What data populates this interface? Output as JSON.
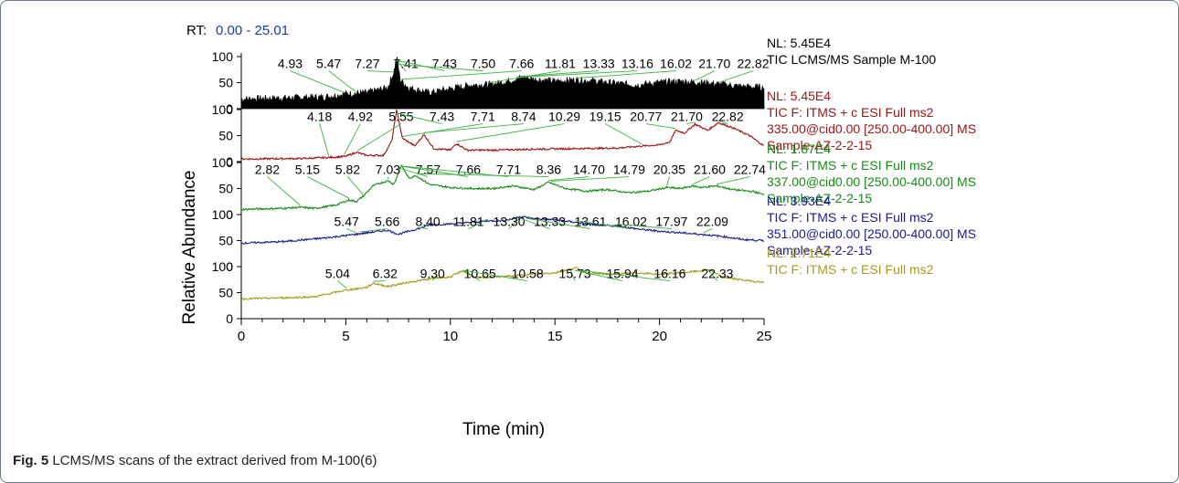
{
  "chart_data": {
    "type": "line",
    "rt_prefix": "RT:",
    "rt_range": "0.00 - 25.01",
    "xlabel": "Time (min)",
    "ylabel": "Relative Abundance",
    "xlim": [
      0,
      25
    ],
    "x_ticks": [
      "0",
      "5",
      "10",
      "15",
      "20",
      "25"
    ],
    "ylim": [
      0,
      100
    ],
    "y_ticks": [
      "0",
      "50",
      "100"
    ],
    "panels": [
      {
        "color": "#000000",
        "style": "filled",
        "info": [
          "NL: 5.45E4",
          "TIC  LCMS/MS Sample M-100"
        ],
        "peaks": [
          {
            "x": 4.93,
            "label": "4.93"
          },
          {
            "x": 5.47,
            "label": "5.47"
          },
          {
            "x": 7.27,
            "label": "7.27"
          },
          {
            "x": 7.41,
            "label": "7.41"
          },
          {
            "x": 7.43,
            "label": "7.43"
          },
          {
            "x": 7.5,
            "label": "7.50"
          },
          {
            "x": 7.66,
            "label": "7.66"
          },
          {
            "x": 11.81,
            "label": "11.81"
          },
          {
            "x": 13.33,
            "label": "13.33"
          },
          {
            "x": 13.16,
            "label": "13.16"
          },
          {
            "x": 16.02,
            "label": "16.02"
          },
          {
            "x": 21.7,
            "label": "21.70"
          },
          {
            "x": 22.82,
            "label": "22.82"
          }
        ],
        "profile": [
          [
            0,
            18
          ],
          [
            2,
            20
          ],
          [
            4,
            22
          ],
          [
            5,
            28
          ],
          [
            6,
            30
          ],
          [
            7,
            40
          ],
          [
            7.3,
            70
          ],
          [
            7.43,
            100
          ],
          [
            7.6,
            55
          ],
          [
            8,
            40
          ],
          [
            9,
            30
          ],
          [
            10,
            38
          ],
          [
            11,
            45
          ],
          [
            12,
            46
          ],
          [
            13,
            55
          ],
          [
            13.5,
            60
          ],
          [
            14,
            56
          ],
          [
            15,
            52
          ],
          [
            16,
            55
          ],
          [
            17,
            52
          ],
          [
            18,
            48
          ],
          [
            19,
            45
          ],
          [
            20,
            50
          ],
          [
            21,
            52
          ],
          [
            22,
            50
          ],
          [
            23,
            46
          ],
          [
            24,
            42
          ],
          [
            25,
            40
          ]
        ]
      },
      {
        "color": "#9b1414",
        "style": "line",
        "info": [
          "NL: 5.45E4",
          "TIC F: ITMS + c ESI Full ms2",
          "335.00@cid0.00 [250.00-400.00] MS",
          "Sample-AZ-2-2-15"
        ],
        "peaks": [
          {
            "x": 4.18,
            "label": "4.18"
          },
          {
            "x": 4.92,
            "label": "4.92"
          },
          {
            "x": 5.55,
            "label": "5.55"
          },
          {
            "x": 7.43,
            "label": "7.43"
          },
          {
            "x": 7.71,
            "label": "7.71"
          },
          {
            "x": 8.74,
            "label": "8.74"
          },
          {
            "x": 10.29,
            "label": "10.29"
          },
          {
            "x": 19.15,
            "label": "19.15"
          },
          {
            "x": 20.77,
            "label": "20.77"
          },
          {
            "x": 21.7,
            "label": "21.70"
          },
          {
            "x": 22.82,
            "label": "22.82"
          }
        ],
        "profile": [
          [
            0,
            5
          ],
          [
            3,
            6
          ],
          [
            4.2,
            8
          ],
          [
            5,
            10
          ],
          [
            5.5,
            18
          ],
          [
            6,
            12
          ],
          [
            6.8,
            12
          ],
          [
            7.2,
            40
          ],
          [
            7.43,
            100
          ],
          [
            7.7,
            45
          ],
          [
            8.3,
            30
          ],
          [
            8.74,
            52
          ],
          [
            9.2,
            25
          ],
          [
            10,
            22
          ],
          [
            10.29,
            35
          ],
          [
            10.8,
            22
          ],
          [
            12,
            22
          ],
          [
            14,
            24
          ],
          [
            16,
            25
          ],
          [
            18,
            26
          ],
          [
            19.15,
            30
          ],
          [
            20,
            32
          ],
          [
            20.5,
            38
          ],
          [
            20.77,
            60
          ],
          [
            21.2,
            55
          ],
          [
            21.7,
            72
          ],
          [
            22.3,
            60
          ],
          [
            22.82,
            75
          ],
          [
            23.5,
            65
          ],
          [
            24.3,
            50
          ],
          [
            25,
            30
          ]
        ]
      },
      {
        "color": "#168a16",
        "style": "line",
        "info": [
          "NL: 1.87E4",
          "TIC F: ITMS + c ESI Full ms2",
          "337.00@cid0.00 [250.00-400.00] MS",
          "Sample-AZ-2-2-15"
        ],
        "peaks": [
          {
            "x": 2.82,
            "label": "2.82"
          },
          {
            "x": 5.15,
            "label": "5.15"
          },
          {
            "x": 5.82,
            "label": "5.82"
          },
          {
            "x": 7.03,
            "label": "7.03"
          },
          {
            "x": 7.57,
            "label": "7.57"
          },
          {
            "x": 7.66,
            "label": "7.66"
          },
          {
            "x": 7.71,
            "label": "7.71"
          },
          {
            "x": 8.36,
            "label": "8.36"
          },
          {
            "x": 14.7,
            "label": "14.70"
          },
          {
            "x": 14.79,
            "label": "14.79"
          },
          {
            "x": 20.35,
            "label": "20.35"
          },
          {
            "x": 21.6,
            "label": "21.60"
          },
          {
            "x": 22.74,
            "label": "22.74"
          }
        ],
        "profile": [
          [
            0,
            10
          ],
          [
            2,
            12
          ],
          [
            2.82,
            14
          ],
          [
            3.5,
            12
          ],
          [
            4.5,
            18
          ],
          [
            5.15,
            28
          ],
          [
            5.5,
            25
          ],
          [
            5.82,
            35
          ],
          [
            6.3,
            55
          ],
          [
            6.6,
            60
          ],
          [
            7.03,
            65
          ],
          [
            7.3,
            58
          ],
          [
            7.66,
            95
          ],
          [
            8,
            70
          ],
          [
            8.36,
            75
          ],
          [
            9,
            58
          ],
          [
            10,
            52
          ],
          [
            11,
            50
          ],
          [
            12,
            50
          ],
          [
            13,
            55
          ],
          [
            14,
            48
          ],
          [
            14.7,
            62
          ],
          [
            15.5,
            50
          ],
          [
            16.5,
            45
          ],
          [
            17.5,
            48
          ],
          [
            18.5,
            42
          ],
          [
            19.5,
            45
          ],
          [
            20.35,
            52
          ],
          [
            21,
            50
          ],
          [
            21.6,
            55
          ],
          [
            22,
            52
          ],
          [
            22.74,
            55
          ],
          [
            23.5,
            48
          ],
          [
            24.5,
            44
          ],
          [
            25,
            38
          ]
        ]
      },
      {
        "color": "#1b1b8f",
        "style": "line",
        "info": [
          "NL: 3.93E4",
          "TIC F: ITMS + c ESI Full ms2",
          "351.00@cid0.00 [250.00-400.00] MS",
          "Sample-AZ-2-2-15"
        ],
        "peaks": [
          {
            "x": 5.47,
            "label": "5.47"
          },
          {
            "x": 5.66,
            "label": "5.66"
          },
          {
            "x": 8.4,
            "label": "8.40"
          },
          {
            "x": 11.81,
            "label": "11.81"
          },
          {
            "x": 13.3,
            "label": "13.30"
          },
          {
            "x": 13.33,
            "label": "13.33"
          },
          {
            "x": 13.61,
            "label": "13.61"
          },
          {
            "x": 16.02,
            "label": "16.02"
          },
          {
            "x": 17.97,
            "label": "17.97"
          },
          {
            "x": 22.09,
            "label": "22.09"
          }
        ],
        "profile": [
          [
            0,
            45
          ],
          [
            2,
            48
          ],
          [
            4,
            55
          ],
          [
            5.47,
            62
          ],
          [
            6,
            65
          ],
          [
            7,
            70
          ],
          [
            7.5,
            62
          ],
          [
            8,
            68
          ],
          [
            8.4,
            72
          ],
          [
            9,
            80
          ],
          [
            10,
            82
          ],
          [
            11,
            85
          ],
          [
            11.81,
            88
          ],
          [
            12.5,
            88
          ],
          [
            13,
            92
          ],
          [
            13.3,
            96
          ],
          [
            13.61,
            95
          ],
          [
            14,
            92
          ],
          [
            15,
            90
          ],
          [
            16,
            85
          ],
          [
            17,
            80
          ],
          [
            18,
            78
          ],
          [
            19,
            72
          ],
          [
            20,
            68
          ],
          [
            21,
            65
          ],
          [
            22,
            62
          ],
          [
            23,
            58
          ],
          [
            24,
            52
          ],
          [
            25,
            50
          ]
        ]
      },
      {
        "color": "#a39c1c",
        "style": "line",
        "info": [
          "NL: 2.71E4",
          "TIC F: ITMS + c ESI Full ms2"
        ],
        "peaks": [
          {
            "x": 5.04,
            "label": "5.04"
          },
          {
            "x": 6.32,
            "label": "6.32"
          },
          {
            "x": 9.3,
            "label": "9.30"
          },
          {
            "x": 10.65,
            "label": "10.65"
          },
          {
            "x": 10.58,
            "label": "10.58"
          },
          {
            "x": 15.73,
            "label": "15.73"
          },
          {
            "x": 15.94,
            "label": "15.94"
          },
          {
            "x": 16.16,
            "label": "16.16"
          },
          {
            "x": 22.33,
            "label": "22.33"
          }
        ],
        "profile": [
          [
            0,
            38
          ],
          [
            2,
            40
          ],
          [
            3.5,
            42
          ],
          [
            5.04,
            55
          ],
          [
            6,
            60
          ],
          [
            6.32,
            68
          ],
          [
            7,
            62
          ],
          [
            8,
            70
          ],
          [
            9.3,
            78
          ],
          [
            10,
            80
          ],
          [
            10.58,
            92
          ],
          [
            11.2,
            78
          ],
          [
            12,
            80
          ],
          [
            13,
            82
          ],
          [
            14,
            86
          ],
          [
            15,
            88
          ],
          [
            15.73,
            95
          ],
          [
            16,
            98
          ],
          [
            16.5,
            88
          ],
          [
            17.5,
            85
          ],
          [
            19,
            88
          ],
          [
            20,
            85
          ],
          [
            21,
            88
          ],
          [
            22,
            92
          ],
          [
            22.33,
            95
          ],
          [
            23,
            80
          ],
          [
            24,
            74
          ],
          [
            25,
            70
          ]
        ]
      }
    ]
  },
  "caption": {
    "label": "Fig. 5",
    "text": " LCMS/MS scans of the extract derived from M-100(6)"
  }
}
